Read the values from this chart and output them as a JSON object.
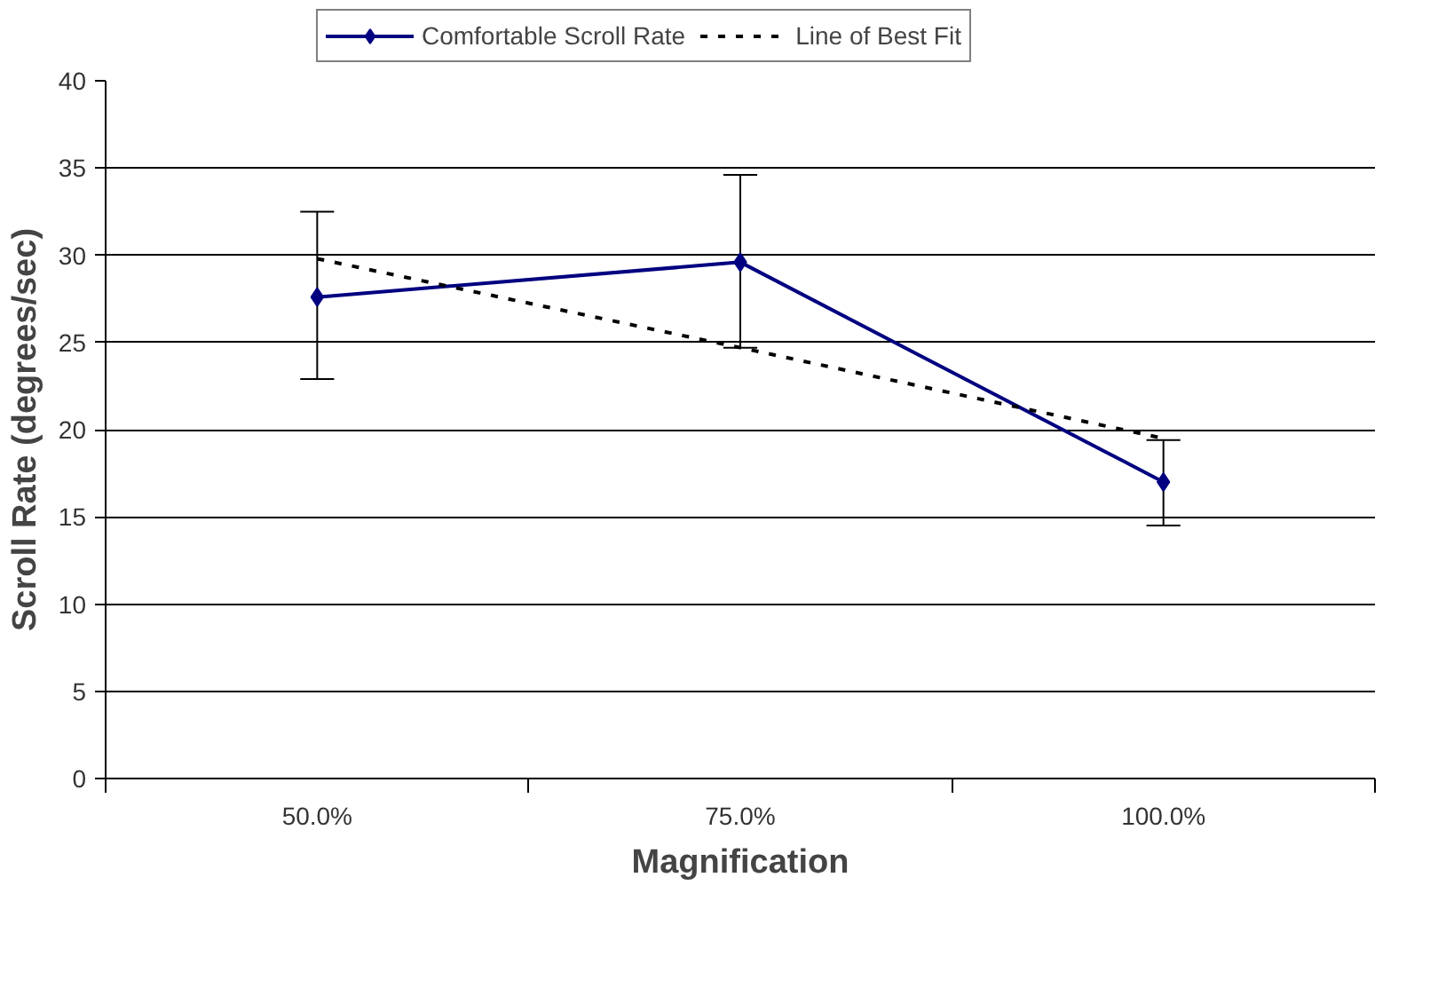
{
  "chart_data": {
    "type": "line",
    "xlabel": "Magnification",
    "ylabel": "Scroll Rate (degrees/sec)",
    "categories": [
      "50.0%",
      "75.0%",
      "100.0%"
    ],
    "series": [
      {
        "name": "Comfortable Scroll Rate",
        "color": "#000080",
        "values": [
          27.6,
          29.6,
          17.0
        ],
        "errors": [
          [
            22.9,
            32.5
          ],
          [
            24.7,
            34.6
          ],
          [
            14.5,
            19.4
          ]
        ],
        "marker": "diamond",
        "line_style": "solid"
      },
      {
        "name": "Line of Best Fit",
        "color": "#000000",
        "values": [
          29.8,
          24.7,
          19.5
        ],
        "marker": "none",
        "line_style": "dotted"
      }
    ],
    "ylim": [
      0,
      40
    ],
    "yticks": [
      0,
      5,
      10,
      15,
      20,
      25,
      30,
      35,
      40
    ],
    "grid": "y",
    "legend": "top"
  }
}
